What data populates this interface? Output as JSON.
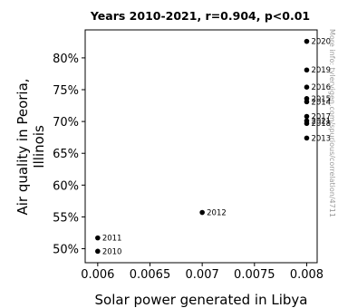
{
  "chart_data": {
    "type": "scatter",
    "title": "Years 2010-2021, r=0.904, p<0.01",
    "xlabel": "Solar power generated in Libya",
    "ylabel_lines": [
      "Air quality in Peoria,",
      "Illinois"
    ],
    "xlim": [
      0.00588,
      0.0081
    ],
    "ylim": [
      47.8,
      84.4
    ],
    "xticks": [
      {
        "value": 0.006,
        "label": "0.006"
      },
      {
        "value": 0.0065,
        "label": "0.0065"
      },
      {
        "value": 0.007,
        "label": "0.007"
      },
      {
        "value": 0.0075,
        "label": "0.0075"
      },
      {
        "value": 0.008,
        "label": "0.008"
      }
    ],
    "yticks": [
      {
        "value": 50,
        "label": "50%"
      },
      {
        "value": 55,
        "label": "55%"
      },
      {
        "value": 60,
        "label": "60%"
      },
      {
        "value": 65,
        "label": "65%"
      },
      {
        "value": 70,
        "label": "70%"
      },
      {
        "value": 75,
        "label": "75%"
      },
      {
        "value": 80,
        "label": "80%"
      }
    ],
    "points": [
      {
        "label": "2010",
        "x": 0.006,
        "y": 49.6
      },
      {
        "label": "2011",
        "x": 0.006,
        "y": 51.7
      },
      {
        "label": "2012",
        "x": 0.007,
        "y": 55.7
      },
      {
        "label": "2013",
        "x": 0.008,
        "y": 67.4
      },
      {
        "label": "2014",
        "x": 0.008,
        "y": 73.1
      },
      {
        "label": "2015",
        "x": 0.008,
        "y": 73.6
      },
      {
        "label": "2016",
        "x": 0.008,
        "y": 75.4
      },
      {
        "label": "2017",
        "x": 0.008,
        "y": 70.8
      },
      {
        "label": "2018",
        "x": 0.008,
        "y": 69.7
      },
      {
        "label": "2019",
        "x": 0.008,
        "y": 78.1
      },
      {
        "label": "2020",
        "x": 0.008,
        "y": 82.6
      },
      {
        "label": "2021",
        "x": 0.008,
        "y": 70.1
      }
    ],
    "marker_color": "#000000",
    "grid": false
  },
  "watermark": "More info: tylervigen.com/spurious/correlation/4711"
}
